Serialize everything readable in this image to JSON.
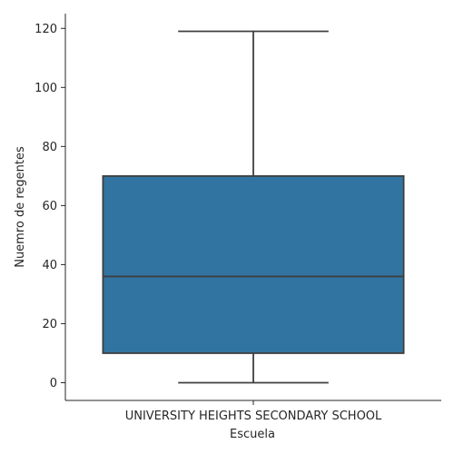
{
  "chart_data": {
    "type": "box",
    "xlabel": "Escuela",
    "ylabel": "Nuemro de regentes",
    "categories": [
      "UNIVERSITY HEIGHTS SECONDARY SCHOOL"
    ],
    "boxes": [
      {
        "category": "UNIVERSITY HEIGHTS SECONDARY SCHOOL",
        "whisker_low": 0,
        "q1": 10,
        "median": 36,
        "q3": 70,
        "whisker_high": 119
      }
    ],
    "yticks": [
      0,
      20,
      40,
      60,
      80,
      100,
      120
    ],
    "ylim": [
      -6,
      125
    ],
    "grid": false,
    "colors": {
      "box_fill": "#3274a1",
      "line": "#3f3f3f",
      "axis": "#262626"
    }
  }
}
